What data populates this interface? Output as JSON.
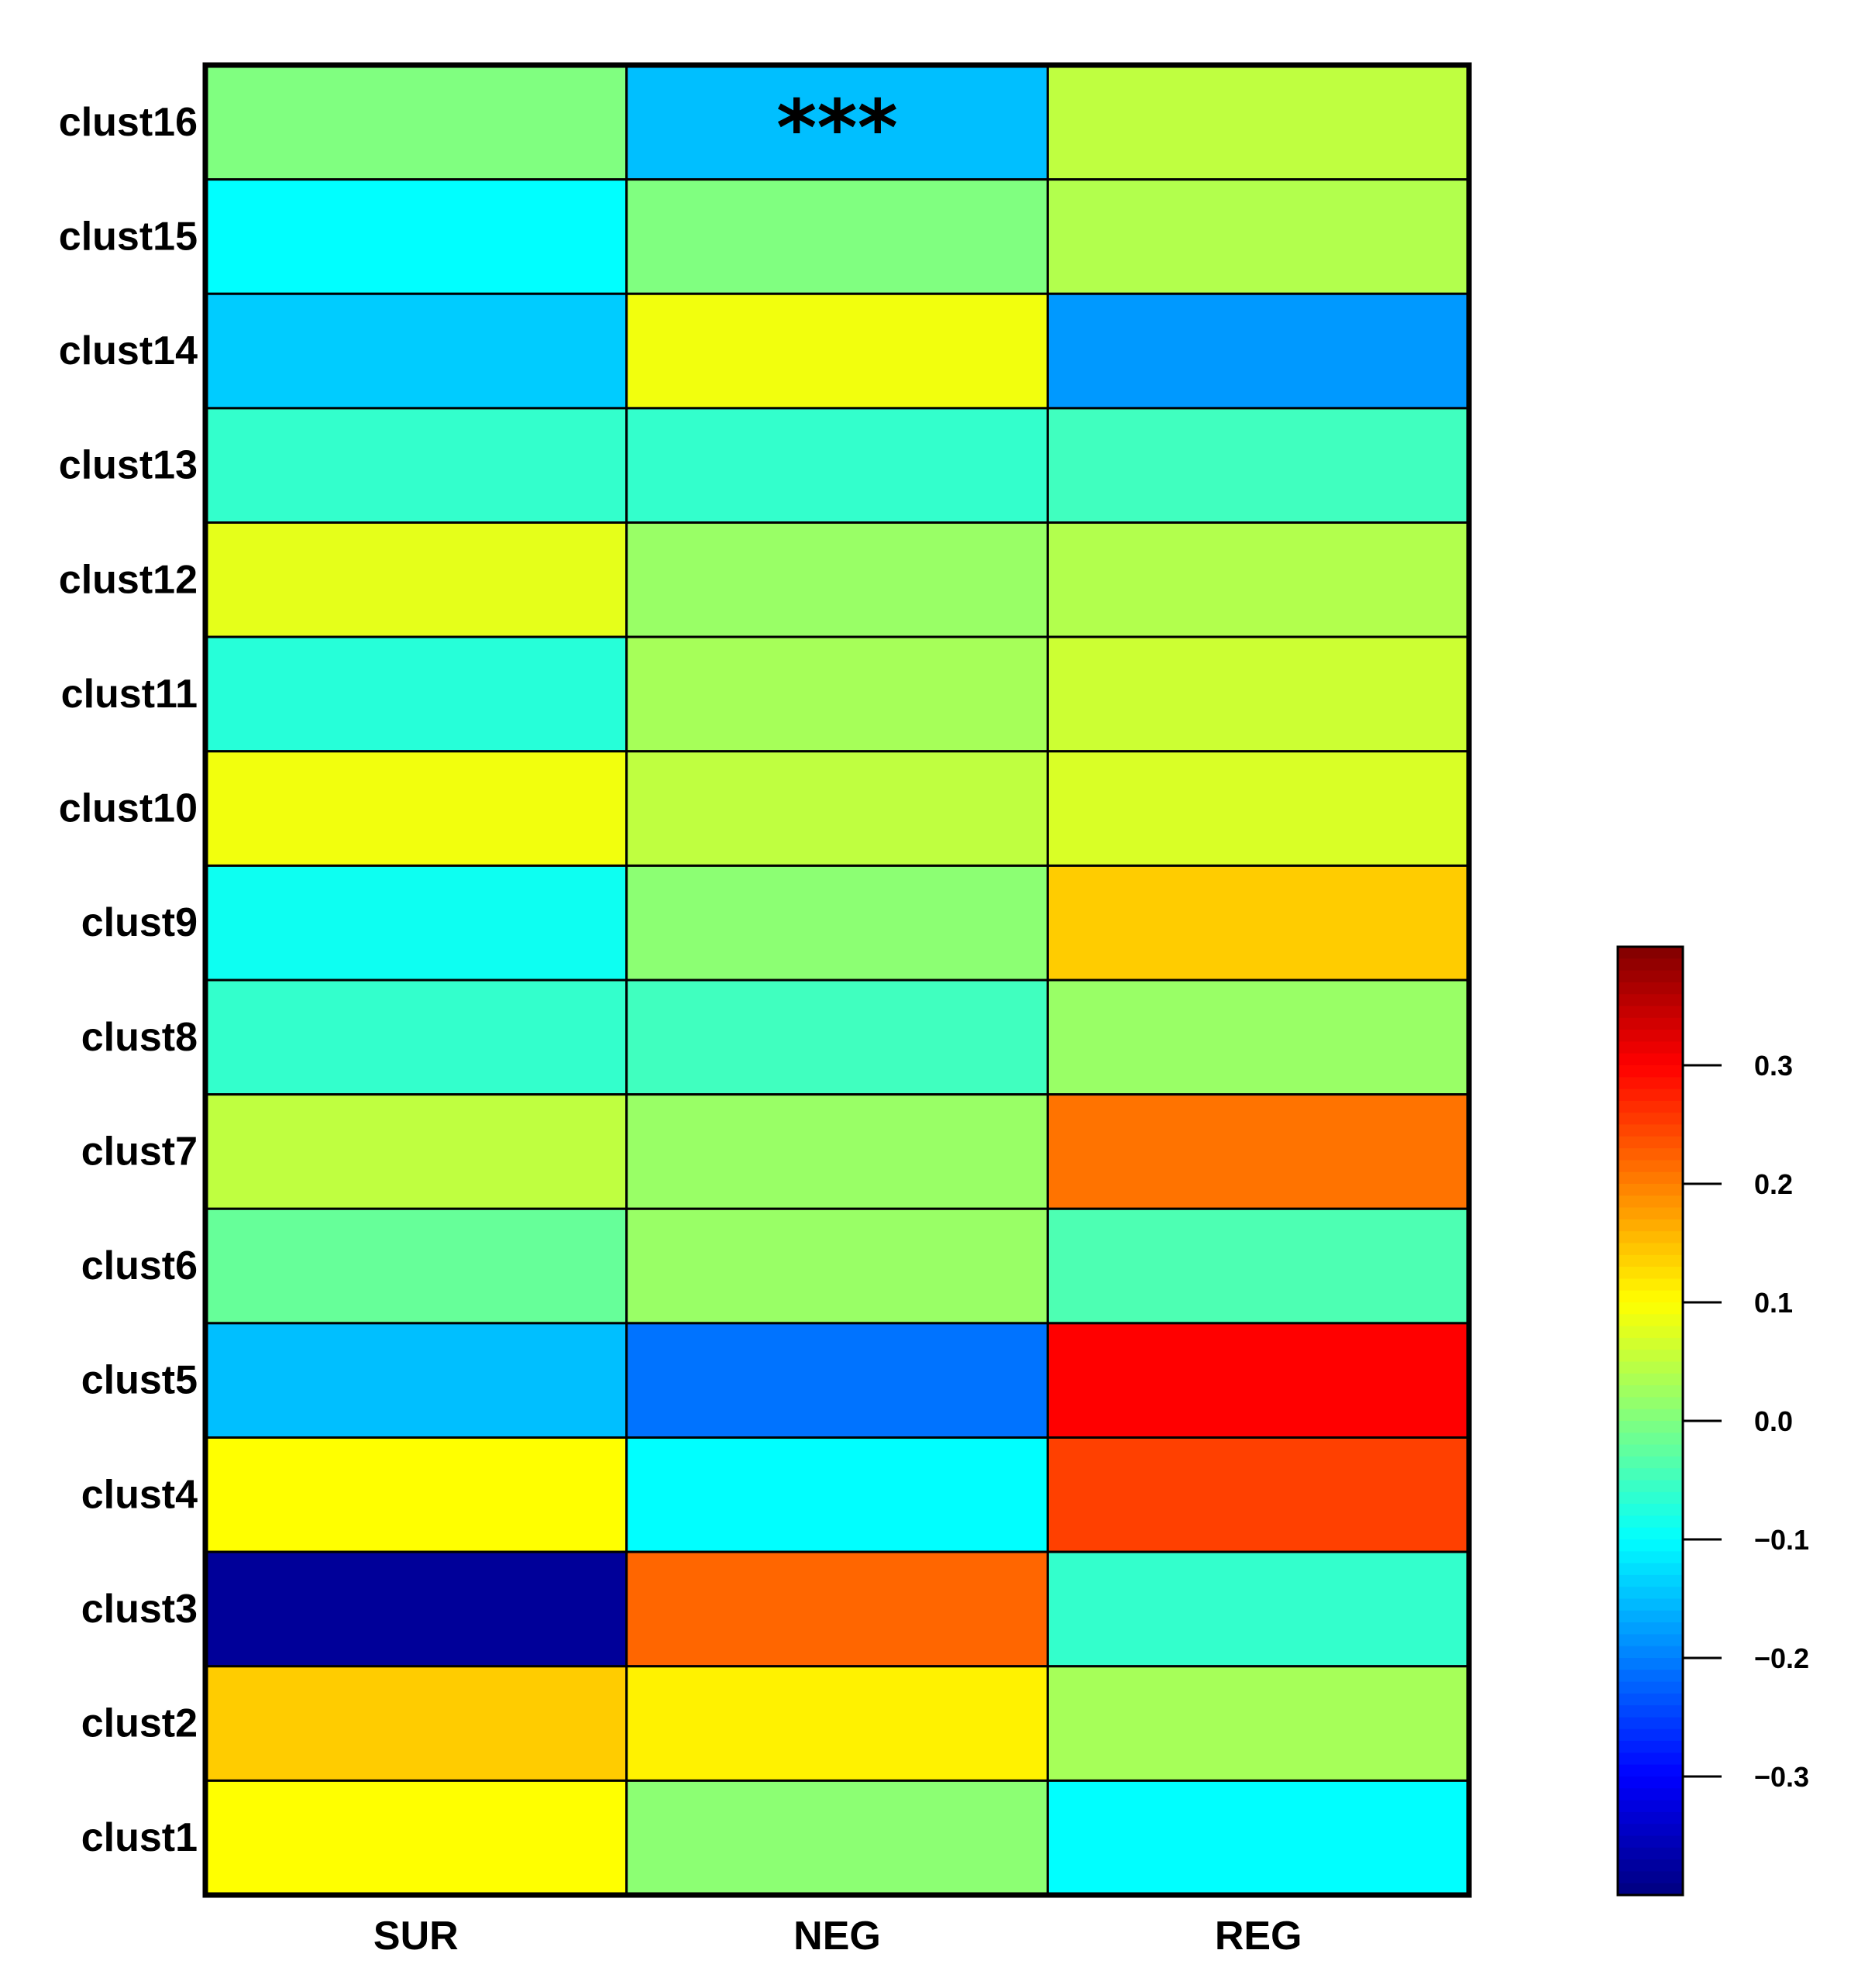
{
  "chart_data": {
    "type": "heatmap",
    "title": "",
    "xlabel": "",
    "ylabel": "",
    "columns": [
      "SUR",
      "NEG",
      "REG"
    ],
    "rows": [
      "clust16",
      "clust15",
      "clust14",
      "clust13",
      "clust12",
      "clust11",
      "clust10",
      "clust9",
      "clust8",
      "clust7",
      "clust6",
      "clust5",
      "clust4",
      "clust3",
      "clust2",
      "clust1"
    ],
    "values": [
      [
        0.0,
        -0.15,
        0.05
      ],
      [
        -0.1,
        0.0,
        0.04
      ],
      [
        -0.14,
        0.09,
        -0.18
      ],
      [
        -0.06,
        -0.06,
        -0.05
      ],
      [
        0.08,
        0.02,
        0.04
      ],
      [
        -0.07,
        0.03,
        0.06
      ],
      [
        0.09,
        0.05,
        0.07
      ],
      [
        -0.09,
        0.01,
        0.14
      ],
      [
        -0.06,
        -0.05,
        0.02
      ],
      [
        0.05,
        0.02,
        0.21
      ],
      [
        -0.02,
        0.02,
        -0.04
      ],
      [
        -0.15,
        -0.21,
        0.3
      ],
      [
        0.1,
        -0.1,
        0.25
      ],
      [
        -0.38,
        0.22,
        -0.06
      ],
      [
        0.14,
        0.11,
        0.03
      ],
      [
        0.1,
        0.01,
        -0.1
      ]
    ],
    "annotations": [
      {
        "row": "clust16",
        "column": "NEG",
        "text": "***"
      }
    ],
    "colormap": "jet",
    "vmin": -0.4,
    "vmax": 0.4,
    "colorbar": {
      "ticks": [
        0.3,
        0.2,
        0.1,
        0.0,
        -0.1,
        -0.2,
        -0.3
      ],
      "tick_labels": [
        "0.3",
        "0.2",
        "0.1",
        "0.0",
        "−0.1",
        "−0.2",
        "−0.3"
      ],
      "placement": "right"
    },
    "grid": true
  }
}
